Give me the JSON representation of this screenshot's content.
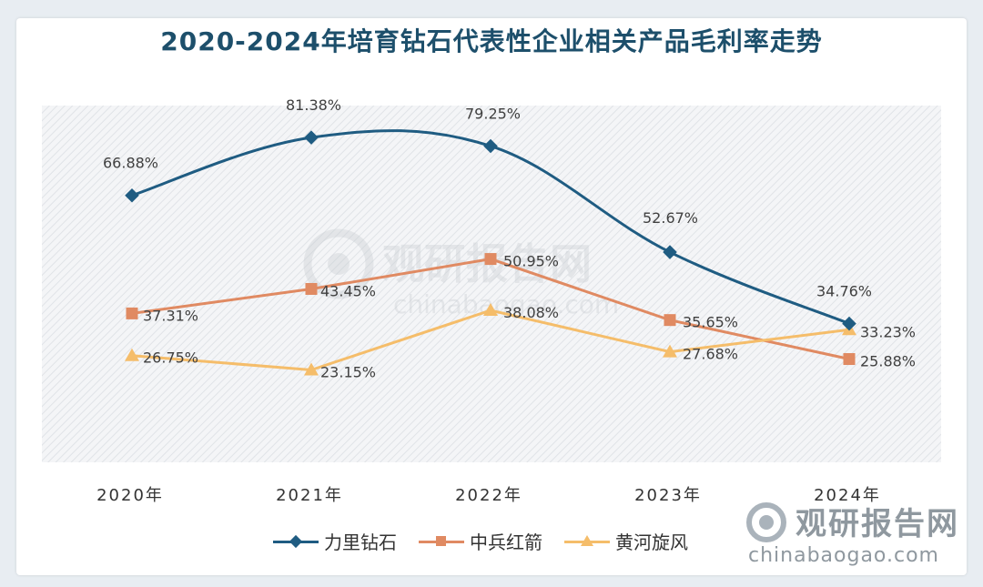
{
  "title": "2020-2024年培育钻石代表性企业相关产品毛利率走势",
  "watermark": {
    "cn": "观研报告网",
    "en": "chinabaogao.com"
  },
  "chart_data": {
    "type": "line",
    "title": "2020-2024年培育钻石代表性企业相关产品毛利率走势",
    "categories": [
      "2020年",
      "2021年",
      "2022年",
      "2023年",
      "2024年"
    ],
    "ylim": [
      0,
      90
    ],
    "unit": "%",
    "legend_position": "bottom",
    "grid": false,
    "series": [
      {
        "name": "力里钻石",
        "marker": "diamond",
        "color": "#1f5c82",
        "smooth": true,
        "values": [
          66.88,
          81.38,
          79.25,
          52.67,
          34.76
        ],
        "labels": [
          "66.88%",
          "81.38%",
          "79.25%",
          "52.67%",
          "34.76%"
        ]
      },
      {
        "name": "中兵红箭",
        "marker": "square",
        "color": "#e08a62",
        "smooth": false,
        "values": [
          37.31,
          43.45,
          50.95,
          35.65,
          25.88
        ],
        "labels": [
          "37.31%",
          "43.45%",
          "50.95%",
          "35.65%",
          "25.88%"
        ]
      },
      {
        "name": "黄河旋风",
        "marker": "triangle",
        "color": "#f5bd6a",
        "smooth": false,
        "values": [
          26.75,
          23.15,
          38.08,
          27.68,
          33.23
        ],
        "labels": [
          "26.75%",
          "23.15%",
          "38.08%",
          "27.68%",
          "33.23%"
        ]
      }
    ]
  }
}
